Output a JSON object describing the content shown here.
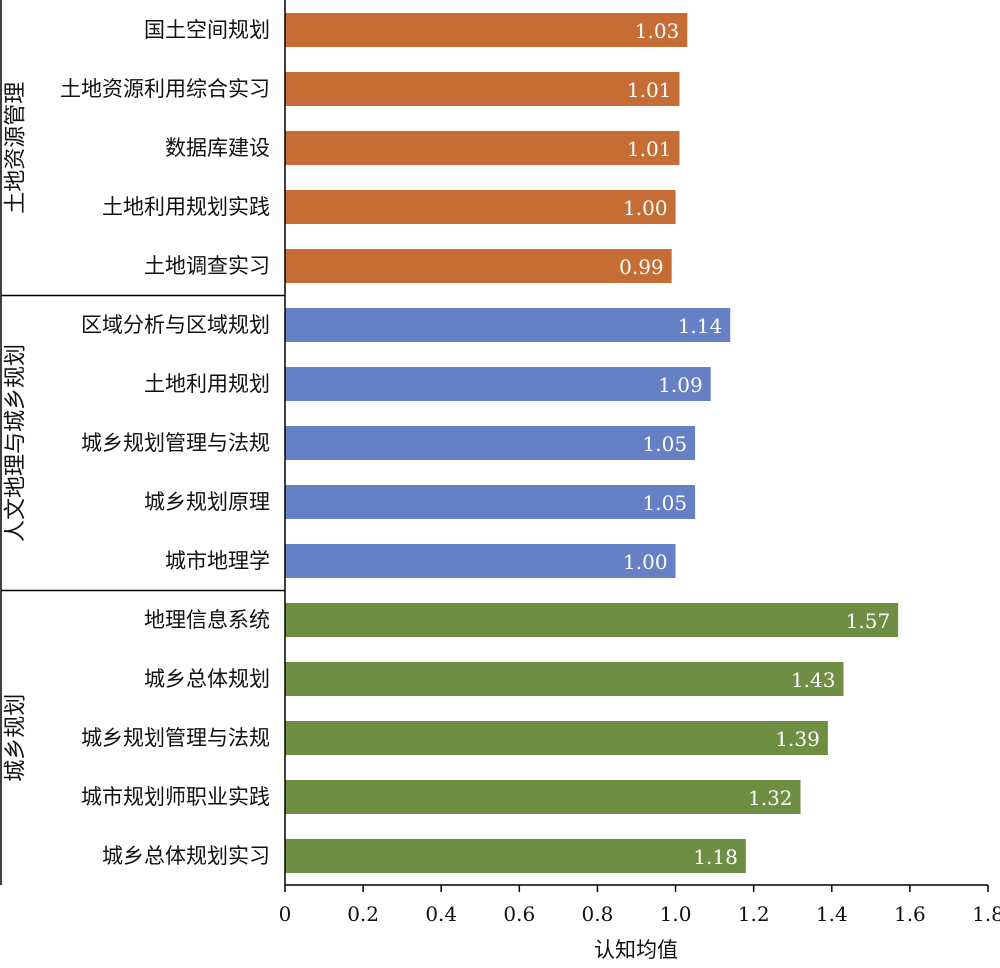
{
  "chart_data": {
    "type": "bar",
    "orientation": "horizontal",
    "xlabel": "认知均值",
    "xlim": [
      0,
      1.8
    ],
    "xticks": [
      0,
      0.2,
      0.4,
      0.6,
      0.8,
      1.0,
      1.2,
      1.4,
      1.6,
      1.8
    ],
    "xtick_labels": [
      "0",
      "0.2",
      "0.4",
      "0.6",
      "0.8",
      "1.0",
      "1.2",
      "1.4",
      "1.6",
      "1.8"
    ],
    "grid": false,
    "legend": "none",
    "groups": [
      {
        "name": "土地资源管理",
        "color": "#c56d35",
        "categories": [
          "国土空间规划",
          "土地资源利用综合实习",
          "数据库建设",
          "土地利用规划实践",
          "土地调查实习"
        ],
        "values": [
          1.03,
          1.01,
          1.01,
          1.0,
          0.99
        ],
        "value_labels": [
          "1.03",
          "1.01",
          "1.01",
          "1.00",
          "0.99"
        ]
      },
      {
        "name": "人文地理与城乡规划",
        "color": "#6580c4",
        "categories": [
          "区域分析与区域规划",
          "土地利用规划",
          "城乡规划管理与法规",
          "城乡规划原理",
          "城市地理学"
        ],
        "values": [
          1.14,
          1.09,
          1.05,
          1.05,
          1.0
        ],
        "value_labels": [
          "1.14",
          "1.09",
          "1.05",
          "1.05",
          "1.00"
        ]
      },
      {
        "name": "城乡规划",
        "color": "#6e8f43",
        "categories": [
          "地理信息系统",
          "城乡总体规划",
          "城乡规划管理与法规",
          "城市规划师职业实践",
          "城乡总体规划实习"
        ],
        "values": [
          1.57,
          1.43,
          1.39,
          1.32,
          1.18
        ],
        "value_labels": [
          "1.57",
          "1.43",
          "1.39",
          "1.32",
          "1.18"
        ]
      }
    ]
  }
}
